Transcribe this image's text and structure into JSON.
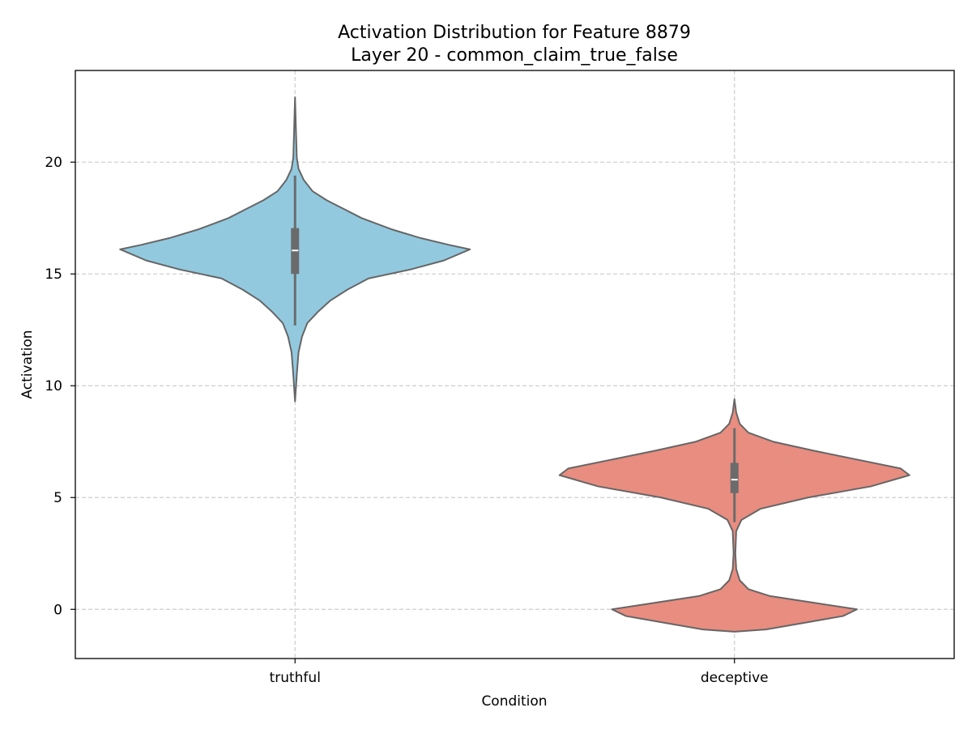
{
  "chart_data": {
    "type": "violin",
    "title": "Activation Distribution for Feature 8879",
    "subtitle": "Layer 20 - common_claim_true_false",
    "xlabel": "Condition",
    "ylabel": "Activation",
    "categories": [
      "truthful",
      "deceptive"
    ],
    "ylim": [
      -2.2,
      24.1
    ],
    "yticks": [
      0,
      5,
      10,
      15,
      20
    ],
    "grid": true,
    "series": [
      {
        "name": "truthful",
        "color": "#92C9DF",
        "edge_color": "#666666",
        "box": {
          "q1": 15.0,
          "median": 16.05,
          "q3": 17.05,
          "whisker_low": 12.7,
          "whisker_high": 19.4
        },
        "data_range": [
          9.3,
          22.9
        ],
        "density_profile": [
          [
            9.3,
            0.0
          ],
          [
            10.5,
            0.01
          ],
          [
            11.5,
            0.02
          ],
          [
            12.2,
            0.04
          ],
          [
            12.8,
            0.07
          ],
          [
            13.3,
            0.13
          ],
          [
            13.8,
            0.2
          ],
          [
            14.3,
            0.3
          ],
          [
            14.8,
            0.42
          ],
          [
            15.2,
            0.66
          ],
          [
            15.6,
            0.85
          ],
          [
            16.0,
            0.97
          ],
          [
            16.1,
            1.0
          ],
          [
            16.3,
            0.88
          ],
          [
            16.6,
            0.72
          ],
          [
            17.0,
            0.55
          ],
          [
            17.5,
            0.38
          ],
          [
            17.9,
            0.28
          ],
          [
            18.3,
            0.18
          ],
          [
            18.7,
            0.1
          ],
          [
            19.2,
            0.05
          ],
          [
            19.7,
            0.02
          ],
          [
            20.2,
            0.01
          ],
          [
            21.5,
            0.005
          ],
          [
            22.9,
            0.0
          ]
        ]
      },
      {
        "name": "deceptive",
        "color": "#E88D80",
        "edge_color": "#666666",
        "box": {
          "q1": 5.2,
          "median": 5.8,
          "q3": 6.55,
          "whisker_low": 3.9,
          "whisker_high": 8.1
        },
        "data_range": [
          -1.0,
          9.4
        ],
        "density_profile": [
          [
            -1.0,
            0.0
          ],
          [
            -0.9,
            0.18
          ],
          [
            -0.6,
            0.4
          ],
          [
            -0.3,
            0.62
          ],
          [
            0.0,
            0.7
          ],
          [
            0.3,
            0.45
          ],
          [
            0.6,
            0.2
          ],
          [
            0.9,
            0.08
          ],
          [
            1.3,
            0.03
          ],
          [
            1.8,
            0.01
          ],
          [
            2.5,
            0.005
          ],
          [
            3.5,
            0.01
          ],
          [
            4.0,
            0.04
          ],
          [
            4.5,
            0.15
          ],
          [
            5.0,
            0.42
          ],
          [
            5.5,
            0.78
          ],
          [
            6.0,
            1.0
          ],
          [
            6.3,
            0.95
          ],
          [
            6.7,
            0.7
          ],
          [
            7.1,
            0.45
          ],
          [
            7.5,
            0.22
          ],
          [
            7.9,
            0.08
          ],
          [
            8.3,
            0.03
          ],
          [
            8.8,
            0.01
          ],
          [
            9.4,
            0.0
          ]
        ]
      }
    ]
  }
}
